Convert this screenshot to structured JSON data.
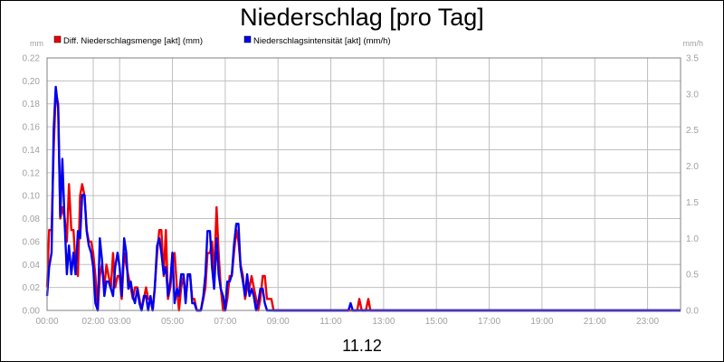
{
  "chart_data": {
    "type": "line",
    "title": "Niederschlag [pro Tag]",
    "xlabel": "11.12",
    "left_unit": "mm",
    "right_unit": "mm/h",
    "x_range_hours": [
      0,
      24
    ],
    "left_ylim": [
      0,
      0.22
    ],
    "right_ylim": [
      0,
      3.5
    ],
    "grid": true,
    "legend_placement": "top-left",
    "x_ticks": [
      "00:00",
      "02:00",
      "03:00",
      "05:00",
      "07:00",
      "09:00",
      "11:00",
      "13:00",
      "15:00",
      "17:00",
      "19:00",
      "21:00",
      "23:00"
    ],
    "x_tick_hours": [
      0,
      1.75,
      2.75,
      4.75,
      6.75,
      8.75,
      10.75,
      12.75,
      14.75,
      16.75,
      18.75,
      20.75,
      22.75
    ],
    "left_ticks": [
      "0.00",
      "0.02",
      "0.04",
      "0.06",
      "0.08",
      "0.10",
      "0.12",
      "0.14",
      "0.16",
      "0.18",
      "0.20",
      "0.22"
    ],
    "right_ticks": [
      "0.0",
      "0.5",
      "1.0",
      "1.5",
      "2.0",
      "2.5",
      "3.0",
      "3.5"
    ],
    "colors": {
      "series1": "#ee0000",
      "series2": "#0000ee",
      "grid": "#c0c0c0"
    },
    "series": [
      {
        "name": "Diff. Niederschlagsmenge [akt] (mm)",
        "axis": "left",
        "x": [
          0,
          0.08,
          0.17,
          0.25,
          0.33,
          0.42,
          0.5,
          0.58,
          0.67,
          0.75,
          0.83,
          0.92,
          1.0,
          1.08,
          1.17,
          1.25,
          1.33,
          1.42,
          1.5,
          1.58,
          1.67,
          1.75,
          1.83,
          1.92,
          2.0,
          2.08,
          2.17,
          2.25,
          2.33,
          2.42,
          2.5,
          2.58,
          2.67,
          2.75,
          2.83,
          2.92,
          3.0,
          3.08,
          3.17,
          3.25,
          3.33,
          3.42,
          3.5,
          3.58,
          3.67,
          3.75,
          3.83,
          3.92,
          4.0,
          4.08,
          4.17,
          4.25,
          4.33,
          4.42,
          4.5,
          4.58,
          4.67,
          4.75,
          4.83,
          4.92,
          5.0,
          5.08,
          5.17,
          5.25,
          5.33,
          5.42,
          5.5,
          5.58,
          5.67,
          5.75,
          5.83,
          5.92,
          6.0,
          6.08,
          6.17,
          6.25,
          6.33,
          6.42,
          6.5,
          6.58,
          6.67,
          6.75,
          6.83,
          6.92,
          7.0,
          7.08,
          7.17,
          7.25,
          7.33,
          7.42,
          7.5,
          7.58,
          7.67,
          7.75,
          7.83,
          7.92,
          8.0,
          8.08,
          8.17,
          8.25,
          8.33,
          8.42,
          8.5,
          8.58,
          8.67,
          8.75,
          8.83,
          8.92,
          9.0,
          9.08,
          9.17,
          9.25,
          9.33,
          9.42,
          9.5,
          11.5,
          11.58,
          11.67,
          11.75,
          11.83,
          11.92,
          12.0,
          12.08,
          12.17,
          12.25,
          12.33,
          12.42,
          24.0
        ],
        "values": [
          0.02,
          0.07,
          0.07,
          0.14,
          0.19,
          0.18,
          0.08,
          0.09,
          0.08,
          0.06,
          0.11,
          0.07,
          0.07,
          0.04,
          0.03,
          0.1,
          0.11,
          0.1,
          0.07,
          0.06,
          0.06,
          0.05,
          0.03,
          0.0,
          0.03,
          0.04,
          0.02,
          0.04,
          0.03,
          0.02,
          0.05,
          0.02,
          0.03,
          0.03,
          0.01,
          0.05,
          0.04,
          0.03,
          0.02,
          0.01,
          0.02,
          0.02,
          0.01,
          0.0,
          0.01,
          0.02,
          0.01,
          0.01,
          0.0,
          0.02,
          0.05,
          0.07,
          0.07,
          0.03,
          0.07,
          0.01,
          0.02,
          0.04,
          0.05,
          0.02,
          0.0,
          0.02,
          0.03,
          0.01,
          0.03,
          0.03,
          0.01,
          0.01,
          0.0,
          0.0,
          0.0,
          0.01,
          0.02,
          0.05,
          0.05,
          0.06,
          0.03,
          0.09,
          0.05,
          0.02,
          0.0,
          0.0,
          0.01,
          0.03,
          0.03,
          0.05,
          0.07,
          0.06,
          0.04,
          0.03,
          0.01,
          0.02,
          0.02,
          0.03,
          0.02,
          0.01,
          0.0,
          0.01,
          0.03,
          0.03,
          0.01,
          0.01,
          0.01,
          0.0,
          0.0,
          0.0,
          0.0,
          0.0,
          0.0,
          0.0,
          0.0,
          0.0,
          0.0,
          0.0,
          0.0,
          0.0,
          0.0,
          0.0,
          0.0,
          0.01,
          0.0,
          0.0,
          0.0,
          0.01,
          0.0,
          0.0,
          0.0,
          0.0
        ]
      },
      {
        "name": "Niederschlagsintensität [akt] (mm/h)",
        "axis": "right",
        "x": [
          0,
          0.08,
          0.17,
          0.25,
          0.33,
          0.42,
          0.5,
          0.58,
          0.67,
          0.75,
          0.83,
          0.92,
          1.0,
          1.08,
          1.17,
          1.25,
          1.33,
          1.42,
          1.5,
          1.58,
          1.67,
          1.75,
          1.83,
          1.92,
          2.0,
          2.08,
          2.17,
          2.25,
          2.33,
          2.42,
          2.5,
          2.58,
          2.67,
          2.75,
          2.83,
          2.92,
          3.0,
          3.08,
          3.17,
          3.25,
          3.33,
          3.42,
          3.5,
          3.58,
          3.67,
          3.75,
          3.83,
          3.92,
          4.0,
          4.08,
          4.17,
          4.25,
          4.33,
          4.42,
          4.5,
          4.58,
          4.67,
          4.75,
          4.83,
          4.92,
          5.0,
          5.08,
          5.17,
          5.25,
          5.33,
          5.42,
          5.5,
          5.58,
          5.67,
          5.75,
          5.83,
          5.92,
          6.0,
          6.08,
          6.17,
          6.25,
          6.33,
          6.42,
          6.5,
          6.58,
          6.67,
          6.75,
          6.83,
          6.92,
          7.0,
          7.08,
          7.17,
          7.25,
          7.33,
          7.42,
          7.5,
          7.58,
          7.67,
          7.75,
          7.83,
          7.92,
          8.0,
          8.08,
          8.17,
          8.25,
          8.33,
          8.42,
          8.5,
          8.58,
          8.67,
          8.75,
          8.83,
          8.92,
          9.0,
          9.08,
          9.17,
          9.25,
          9.33,
          9.42,
          9.5,
          11.42,
          11.5,
          11.58,
          11.67,
          24.0
        ],
        "values": [
          0.2,
          0.6,
          0.8,
          2.5,
          3.1,
          2.8,
          1.3,
          2.1,
          1.2,
          0.5,
          0.9,
          0.5,
          0.8,
          0.5,
          1.1,
          1.0,
          1.6,
          1.6,
          1.1,
          0.9,
          0.8,
          0.6,
          0.1,
          0.0,
          1.0,
          0.7,
          0.2,
          0.4,
          0.4,
          0.3,
          0.2,
          0.6,
          0.8,
          0.6,
          0.2,
          1.0,
          0.8,
          0.3,
          0.4,
          0.2,
          0.1,
          0.3,
          0.1,
          0.0,
          0.2,
          0.2,
          0.0,
          0.2,
          0.0,
          0.3,
          0.9,
          1.0,
          0.8,
          0.5,
          0.6,
          0.2,
          0.4,
          0.8,
          0.1,
          0.3,
          0.2,
          0.5,
          0.5,
          0.1,
          0.5,
          0.5,
          0.1,
          0.1,
          0.0,
          0.0,
          0.0,
          0.2,
          0.5,
          1.1,
          1.1,
          0.6,
          0.3,
          1.0,
          0.5,
          0.3,
          0.2,
          0.0,
          0.4,
          0.4,
          0.5,
          0.9,
          1.2,
          1.2,
          0.6,
          0.4,
          0.2,
          0.5,
          0.2,
          0.3,
          0.2,
          0.0,
          0.1,
          0.3,
          0.3,
          0.1,
          0.0,
          0.0,
          0.0,
          0.0,
          0.0,
          0.0,
          0.0,
          0.0,
          0.0,
          0.0,
          0.0,
          0.0,
          0.0,
          0.0,
          0.0,
          0.0,
          0.1,
          0.0,
          0.0,
          0.0
        ]
      }
    ]
  }
}
